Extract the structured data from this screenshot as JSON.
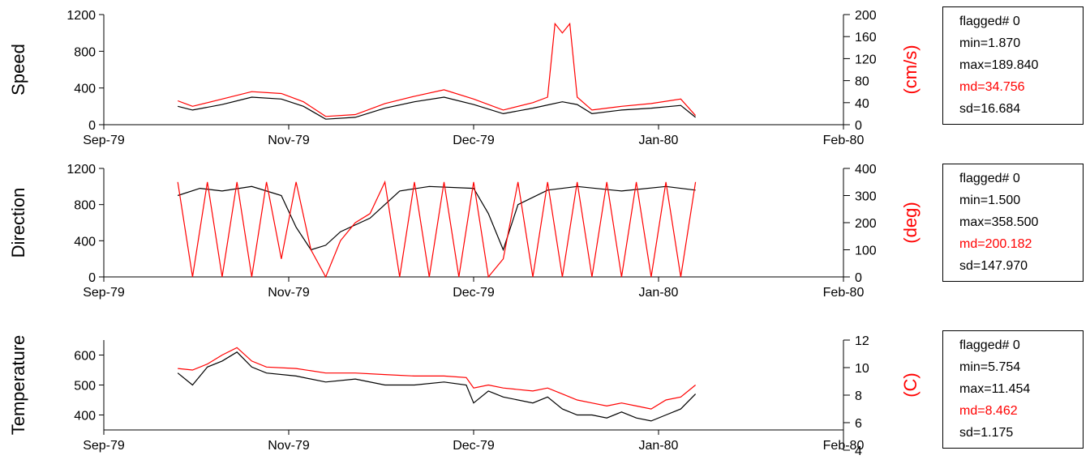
{
  "colors": {
    "primary": "#000000",
    "secondary": "#ff0000"
  },
  "chart_data": [
    {
      "type": "line",
      "ylabel": "Speed",
      "y2label": "(cm/s)",
      "ylim": [
        0,
        1200
      ],
      "yticks": [
        "0",
        "400",
        "800",
        "1200"
      ],
      "y2lim": [
        0,
        200
      ],
      "y2ticks": [
        "0",
        "40",
        "80",
        "120",
        "160",
        "200"
      ],
      "xticks": [
        "Sep-79",
        "Nov-79",
        "Dec-79",
        "Jan-80",
        "Feb-80"
      ],
      "series": [
        {
          "color": "#000000",
          "axis": "left",
          "x": [
            0.1,
            0.12,
            0.16,
            0.2,
            0.24,
            0.27,
            0.3,
            0.34,
            0.38,
            0.42,
            0.46,
            0.5,
            0.54,
            0.58,
            0.62,
            0.64,
            0.66,
            0.7,
            0.74,
            0.78,
            0.8
          ],
          "y": [
            200,
            160,
            220,
            300,
            280,
            200,
            60,
            80,
            180,
            250,
            300,
            220,
            120,
            180,
            250,
            220,
            120,
            160,
            180,
            210,
            80
          ]
        },
        {
          "color": "#ff0000",
          "axis": "left",
          "x": [
            0.1,
            0.12,
            0.16,
            0.2,
            0.24,
            0.27,
            0.3,
            0.34,
            0.38,
            0.42,
            0.46,
            0.5,
            0.54,
            0.58,
            0.6,
            0.61,
            0.62,
            0.63,
            0.64,
            0.66,
            0.7,
            0.74,
            0.78,
            0.8
          ],
          "y": [
            260,
            200,
            280,
            360,
            340,
            250,
            90,
            110,
            230,
            310,
            380,
            280,
            160,
            240,
            300,
            1100,
            1000,
            1100,
            300,
            160,
            200,
            230,
            280,
            100
          ]
        }
      ],
      "stats": {
        "flagged": "flagged# 0",
        "min": "min=1.870",
        "max": "max=189.840",
        "md": "md=34.756",
        "sd": "sd=16.684"
      }
    },
    {
      "type": "line",
      "ylabel": "Direction",
      "y2label": "(deg)",
      "ylim": [
        0,
        1200
      ],
      "yticks": [
        "0",
        "400",
        "800",
        "1200"
      ],
      "y2lim": [
        0,
        400
      ],
      "y2ticks": [
        "0",
        "100",
        "200",
        "300",
        "400"
      ],
      "xticks": [
        "Sep-79",
        "Nov-79",
        "Dec-79",
        "Jan-80",
        "Feb-80"
      ],
      "series": [
        {
          "color": "#000000",
          "axis": "left",
          "x": [
            0.1,
            0.13,
            0.16,
            0.2,
            0.24,
            0.26,
            0.28,
            0.3,
            0.32,
            0.36,
            0.4,
            0.44,
            0.5,
            0.52,
            0.54,
            0.56,
            0.6,
            0.64,
            0.7,
            0.76,
            0.8
          ],
          "y": [
            900,
            980,
            950,
            1000,
            900,
            550,
            300,
            350,
            500,
            650,
            950,
            1000,
            980,
            700,
            300,
            800,
            960,
            1000,
            950,
            1000,
            960
          ]
        },
        {
          "color": "#ff0000",
          "axis": "left",
          "x": [
            0.1,
            0.12,
            0.14,
            0.16,
            0.18,
            0.2,
            0.22,
            0.24,
            0.26,
            0.28,
            0.3,
            0.32,
            0.34,
            0.36,
            0.38,
            0.4,
            0.42,
            0.44,
            0.46,
            0.48,
            0.5,
            0.52,
            0.54,
            0.56,
            0.58,
            0.6,
            0.62,
            0.64,
            0.66,
            0.68,
            0.7,
            0.72,
            0.74,
            0.76,
            0.78,
            0.8
          ],
          "y": [
            1050,
            0,
            1050,
            0,
            1050,
            0,
            1050,
            200,
            1050,
            300,
            0,
            400,
            600,
            700,
            1050,
            0,
            1050,
            0,
            1050,
            0,
            1050,
            0,
            200,
            1050,
            0,
            1050,
            0,
            1050,
            0,
            1050,
            0,
            1050,
            0,
            1050,
            0,
            1050
          ]
        }
      ],
      "stats": {
        "flagged": "flagged# 0",
        "min": "min=1.500",
        "max": "max=358.500",
        "md": "md=200.182",
        "sd": "sd=147.970"
      }
    },
    {
      "type": "line",
      "ylabel": "Temperature",
      "y2label": "(C)",
      "ylim": [
        350,
        650
      ],
      "yticks": [
        "400",
        "500",
        "600"
      ],
      "y2lim": [
        4,
        12
      ],
      "y2ticks": [
        "4",
        "6",
        "8",
        "10",
        "12"
      ],
      "xticks": [
        "Sep-79",
        "Nov-79",
        "Dec-79",
        "Jan-80",
        "Feb-80"
      ],
      "series": [
        {
          "color": "#000000",
          "axis": "left",
          "x": [
            0.1,
            0.12,
            0.14,
            0.16,
            0.18,
            0.2,
            0.22,
            0.26,
            0.3,
            0.34,
            0.38,
            0.42,
            0.46,
            0.49,
            0.5,
            0.52,
            0.54,
            0.58,
            0.6,
            0.62,
            0.64,
            0.66,
            0.68,
            0.7,
            0.72,
            0.74,
            0.76,
            0.78,
            0.8
          ],
          "y": [
            540,
            500,
            560,
            580,
            610,
            560,
            540,
            530,
            510,
            520,
            500,
            500,
            510,
            500,
            440,
            480,
            460,
            440,
            460,
            420,
            400,
            400,
            390,
            410,
            390,
            380,
            400,
            420,
            470
          ]
        },
        {
          "color": "#ff0000",
          "axis": "left",
          "x": [
            0.1,
            0.12,
            0.14,
            0.16,
            0.18,
            0.2,
            0.22,
            0.26,
            0.3,
            0.34,
            0.38,
            0.42,
            0.46,
            0.49,
            0.5,
            0.52,
            0.54,
            0.58,
            0.6,
            0.62,
            0.64,
            0.66,
            0.68,
            0.7,
            0.72,
            0.74,
            0.76,
            0.78,
            0.8
          ],
          "y": [
            555,
            550,
            570,
            600,
            625,
            580,
            560,
            555,
            540,
            540,
            535,
            530,
            530,
            525,
            490,
            500,
            490,
            480,
            490,
            470,
            450,
            440,
            430,
            440,
            430,
            420,
            450,
            460,
            500
          ]
        }
      ],
      "stats": {
        "flagged": "flagged# 0",
        "min": "min=5.754",
        "max": "max=11.454",
        "md": "md=8.462",
        "sd": "sd=1.175"
      }
    }
  ]
}
